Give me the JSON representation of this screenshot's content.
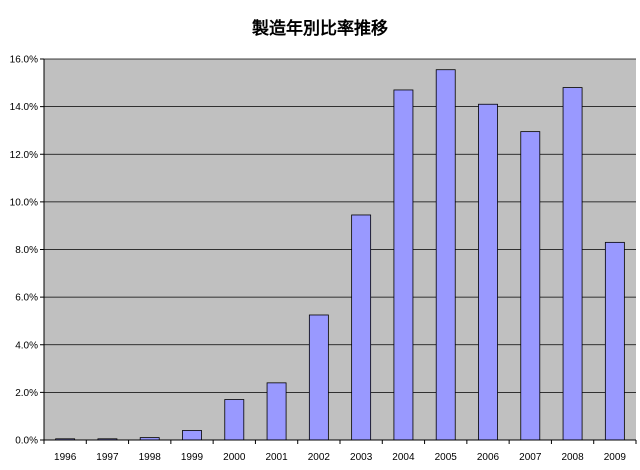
{
  "chart_data": {
    "type": "bar",
    "title": "製造年別比率推移",
    "xlabel": "",
    "ylabel": "",
    "categories": [
      "1996",
      "1997",
      "1998",
      "1999",
      "2000",
      "2001",
      "2002",
      "2003",
      "2004",
      "2005",
      "2006",
      "2007",
      "2008",
      "2009"
    ],
    "values": [
      0.05,
      0.05,
      0.1,
      0.4,
      1.7,
      2.4,
      5.25,
      9.45,
      14.7,
      15.55,
      14.1,
      12.95,
      14.8,
      8.3
    ],
    "ylim": [
      0,
      16
    ],
    "yticks": [
      "0.0%",
      "2.0%",
      "4.0%",
      "6.0%",
      "8.0%",
      "10.0%",
      "12.0%",
      "14.0%",
      "16.0%"
    ],
    "grid": true,
    "legend": "none",
    "colors": {
      "bar_fill": "#9999ff",
      "bar_stroke": "#000000",
      "plot_background": "#c0c0c0",
      "gridline": "#000000"
    }
  }
}
